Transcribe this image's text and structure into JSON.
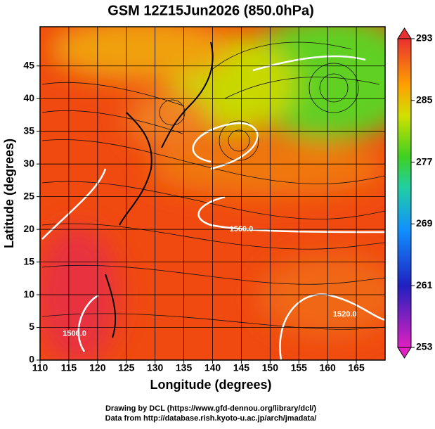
{
  "chart_data": {
    "type": "map",
    "title": "GSM 12Z15Jun2026 (850.0hPa)",
    "x_label": "Longitude (degrees)",
    "y_label": "Latitude  (degrees)",
    "xlim": [
      110,
      170
    ],
    "xticks": [
      110,
      115,
      120,
      125,
      130,
      135,
      140,
      145,
      150,
      155,
      160,
      165
    ],
    "ylim": [
      0,
      51
    ],
    "yticks": [
      0,
      5,
      10,
      15,
      20,
      25,
      30,
      35,
      40,
      45
    ],
    "grid": true,
    "colorbar": {
      "lim": [
        253,
        293
      ],
      "ticks": [
        253,
        261,
        269,
        277,
        285,
        293
      ]
    },
    "contour_labels": [
      {
        "text": "1560.0",
        "lon": 145,
        "lat": 20
      },
      {
        "text": "1520.0",
        "lon": 163,
        "lat": 7
      },
      {
        "text": "1500.0",
        "lon": 116,
        "lat": 4
      }
    ],
    "credits": [
      "Drawing by DCL (https://www.gfd-dennou.org/library/dcl/)",
      "Data from http://database.rish.kyoto-u.ac.jp/arch/jmadata/"
    ]
  }
}
